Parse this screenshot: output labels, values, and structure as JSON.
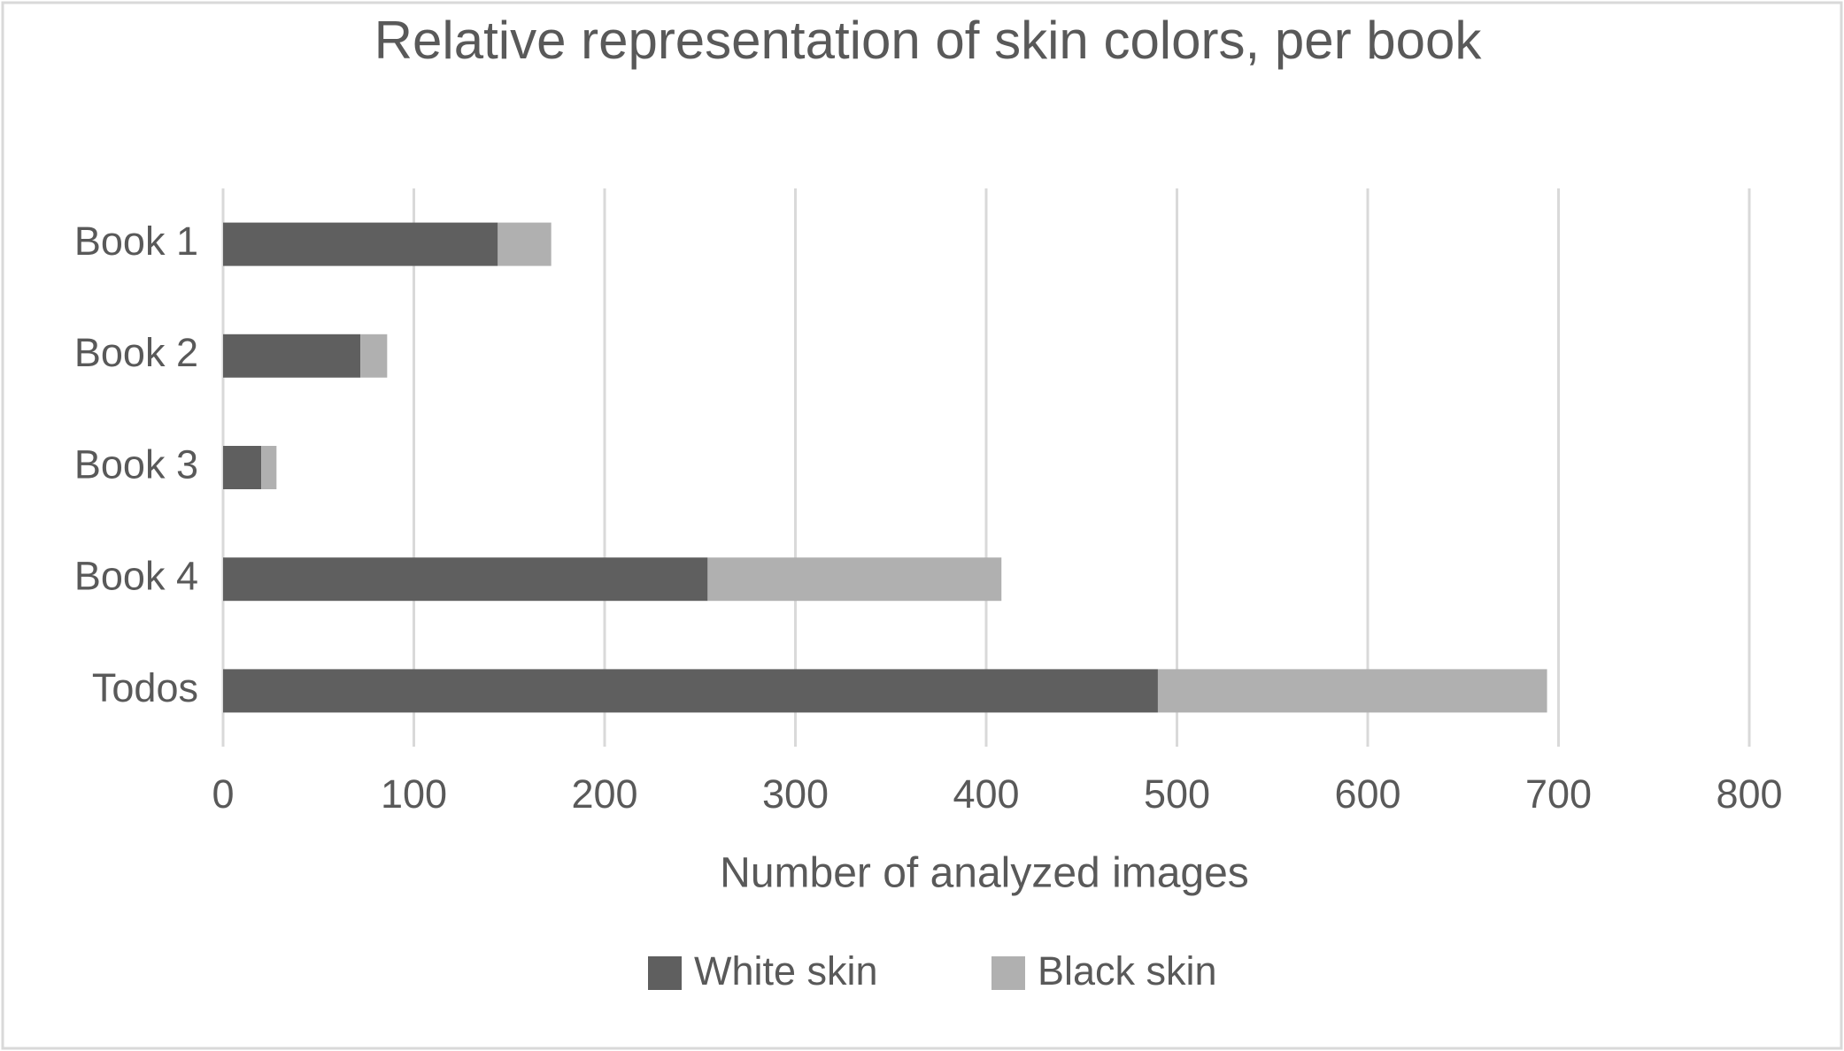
{
  "chart_data": {
    "type": "stacked_barh",
    "title": "Relative representation of skin colors, per book",
    "x_label": "Number of analyzed images",
    "categories": [
      "Book 1",
      "Book 2",
      "Book 3",
      "Book 4",
      "Todos"
    ],
    "series": [
      {
        "name": "White skin",
        "color": "#5f5f5f",
        "values": [
          144,
          72,
          20,
          254,
          490
        ]
      },
      {
        "name": "Black skin",
        "color": "#b0b0b0",
        "values": [
          28,
          14,
          8,
          154,
          204
        ]
      }
    ],
    "xlim": [
      0,
      800
    ],
    "xticks": [
      0,
      100,
      200,
      300,
      400,
      500,
      600,
      700,
      800
    ],
    "grid": true,
    "legend": "bottom"
  }
}
